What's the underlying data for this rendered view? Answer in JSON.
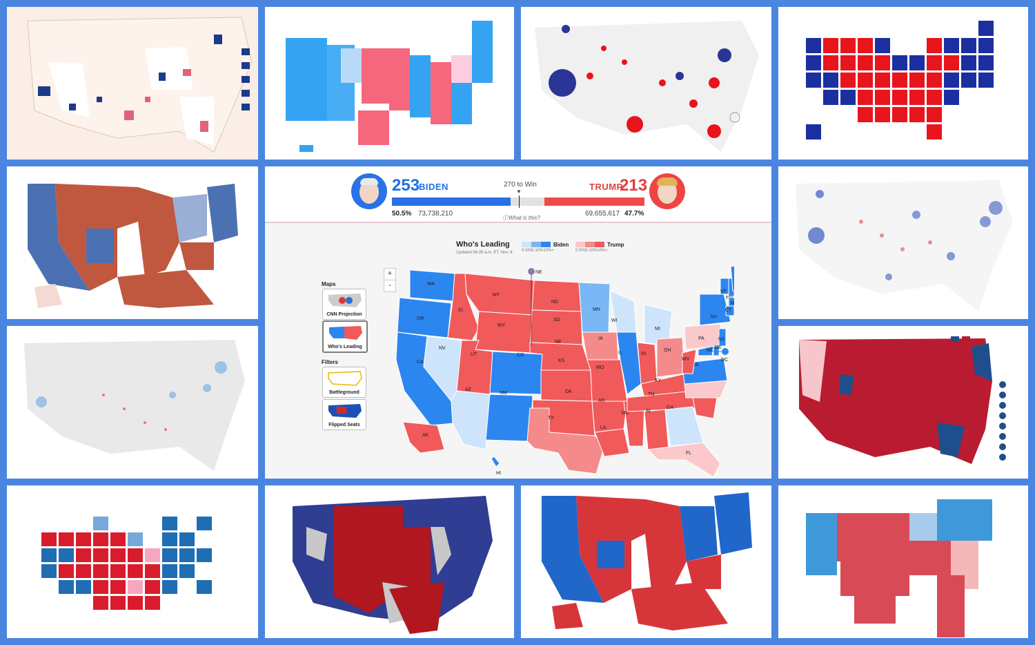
{
  "header": {
    "biden_votes_electoral": "253",
    "biden_label": "BIDEN",
    "trump_votes_electoral": "213",
    "trump_label": "TRUMP",
    "win_threshold": "270 to Win",
    "biden_pct": "50.5%",
    "biden_popular": "73,738,210",
    "trump_popular": "69,655,617",
    "trump_pct": "47.7%",
    "what_is_this": "What is this?",
    "progress": {
      "biden_ev": 253,
      "trump_ev": 213,
      "total_ev": 538,
      "threshold": 270
    }
  },
  "map_panel": {
    "title": "Who's Leading",
    "updated": "Updated 06:28 a.m. ET, Nov. 6",
    "legend_biden": "Biden",
    "legend_trump": "Trump",
    "legend_ranges": "0-5%5-10%10%+",
    "maps_heading": "Maps",
    "filters_heading": "Filters",
    "buttons": [
      "CNN Projection",
      "Who's Leading",
      "Battleground",
      "Flipped Seats"
    ],
    "zoom_in": "+",
    "zoom_out": "-"
  },
  "states": {
    "WA": "WA",
    "OR": "OR",
    "CA": "CA",
    "NV": "NV",
    "ID": "ID",
    "MT": "MT",
    "WY": "WY",
    "UT": "UT",
    "AZ": "AZ",
    "CO": "CO",
    "NM": "NM",
    "ND": "ND",
    "SD": "SD",
    "NE": "NE",
    "KS": "KS",
    "OK": "OK",
    "TX": "TX",
    "MN": "MN",
    "IA": "IA",
    "MO": "MO",
    "AR": "AR",
    "LA": "LA",
    "WI": "WI",
    "IL": "IL",
    "MS": "MS",
    "MI": "MI",
    "IN": "IN",
    "KY": "KY",
    "TN": "TN",
    "AL": "AL",
    "OH": "OH",
    "GA": "GA",
    "FL": "FL",
    "SC": "SC",
    "NC": "NC",
    "VA": "VA",
    "WV": "WV",
    "PA": "PA",
    "NY": "NY",
    "VT": "VT",
    "NH": "NH",
    "ME": "ME",
    "MA": "MA",
    "RI": "RI",
    "CT": "CT",
    "NJ": "NJ",
    "DE": "DE",
    "MD": "MD",
    "DC": "DC",
    "AK": "AK",
    "HI": "HI",
    "NE_marker": "NE"
  },
  "colors": {
    "biden_strong": "#2c86f0",
    "biden_mid": "#7ab8f5",
    "biden_light": "#cde4fb",
    "trump_strong": "#f05a5a",
    "trump_mid": "#f58a8a",
    "trump_light": "#fbc9cb",
    "background": "#4a86e0"
  }
}
